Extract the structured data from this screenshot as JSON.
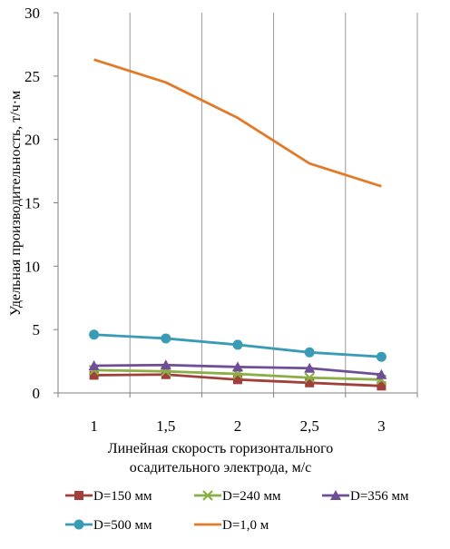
{
  "chart_data": {
    "type": "line",
    "title": "",
    "x": [
      "1",
      "1,5",
      "2",
      "2,5",
      "3"
    ],
    "xlabel_lines": [
      "Линейная скорость горизонтального",
      "осадительного электрода, м/с"
    ],
    "ylabel": "Удельная производительность, т/ч·м",
    "ylim": [
      0,
      30
    ],
    "yticks": [
      0,
      5,
      10,
      15,
      20,
      25,
      30
    ],
    "grid": "vertical",
    "legend_position": "bottom",
    "series": [
      {
        "name": "D=150 мм",
        "color": "#A0403A",
        "marker": "square",
        "values": [
          1.4,
          1.45,
          1.05,
          0.8,
          0.55
        ]
      },
      {
        "name": "D=240 мм",
        "color": "#8CAE46",
        "marker": "x",
        "values": [
          1.8,
          1.7,
          1.5,
          1.2,
          1.05
        ]
      },
      {
        "name": "D=356 мм",
        "color": "#6F4E97",
        "marker": "triangle",
        "values": [
          2.15,
          2.2,
          2.05,
          1.95,
          1.45
        ]
      },
      {
        "name": "D=500 мм",
        "color": "#3A9BB6",
        "marker": "circle",
        "values": [
          4.6,
          4.3,
          3.8,
          3.2,
          2.85
        ]
      },
      {
        "name": "D=1,0 м",
        "color": "#E07B2A",
        "marker": "none",
        "values": [
          26.3,
          24.5,
          21.7,
          18.1,
          16.3
        ]
      }
    ]
  }
}
